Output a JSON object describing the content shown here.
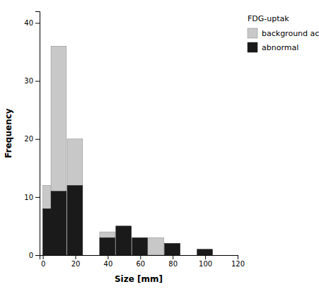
{
  "chart_data": {
    "type": "bar",
    "xlabel": "Size [mm]",
    "ylabel": "Frequency",
    "x": [
      0,
      5,
      15,
      25,
      35,
      45,
      55,
      65,
      75,
      85,
      95,
      105
    ],
    "x_end": [
      9.5,
      14.5,
      24.5,
      34.5,
      44.5,
      54.5,
      64.5,
      74.5,
      84.5,
      94.5,
      104.5,
      114.5
    ],
    "series": [
      {
        "name": "background ac",
        "color": "#c8c8c8",
        "values": [
          12,
          36,
          20,
          0,
          4,
          5,
          0,
          3,
          2,
          0,
          0,
          0
        ]
      },
      {
        "name": "abnormal",
        "color": "#1a1a1a",
        "values": [
          8,
          11,
          12,
          0,
          3,
          5,
          3,
          0,
          2,
          0,
          1,
          0
        ]
      }
    ],
    "xlim": [
      -2,
      120
    ],
    "ylim": [
      0,
      42
    ],
    "xticks": [
      0,
      20,
      40,
      60,
      80,
      100,
      120
    ],
    "yticks": [
      0,
      10,
      20,
      30,
      40
    ],
    "legend_title": "FDG-uptak",
    "legend": "right"
  }
}
